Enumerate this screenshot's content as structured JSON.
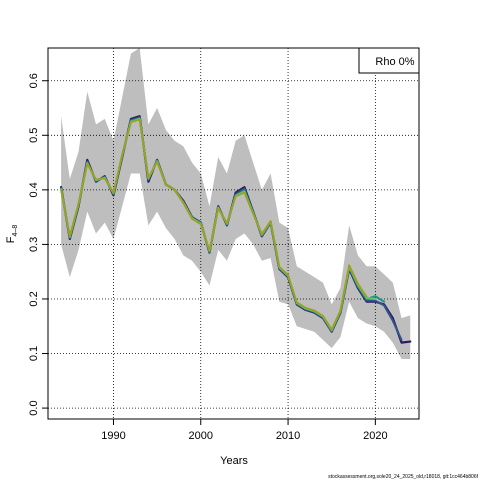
{
  "chart_data": {
    "type": "line",
    "xlabel": "Years",
    "ylabel_main": "F",
    "ylabel_sub": "4–8",
    "legend_label": "Rho 0%",
    "legend_position": "top-right",
    "footer": "stockassessment.org,sole20_24_2025_old,r18018, git:1cc464b806f",
    "xlim": [
      1982.5,
      2025
    ],
    "ylim": [
      -0.02,
      0.66
    ],
    "x_ticks": [
      1990,
      2000,
      2010,
      2020
    ],
    "y_ticks": [
      0.0,
      0.1,
      0.2,
      0.3,
      0.4,
      0.5,
      0.6
    ],
    "y_tick_labels": [
      "0.0",
      "0.1",
      "0.2",
      "0.3",
      "0.4",
      "0.5",
      "0.6"
    ],
    "grid": true,
    "grid_style": "dotted",
    "confidence_band": {
      "color": "#bebebe",
      "x": [
        1984,
        1985,
        1986,
        1987,
        1988,
        1989,
        1990,
        1991,
        1992,
        1993,
        1994,
        1995,
        1996,
        1997,
        1998,
        1999,
        2000,
        2001,
        2002,
        2003,
        2004,
        2005,
        2006,
        2007,
        2008,
        2009,
        2010,
        2011,
        2012,
        2013,
        2014,
        2015,
        2016,
        2017,
        2018,
        2019,
        2020,
        2021,
        2022,
        2023,
        2024
      ],
      "lower": [
        0.3,
        0.24,
        0.29,
        0.36,
        0.32,
        0.34,
        0.31,
        0.37,
        0.43,
        0.43,
        0.335,
        0.36,
        0.33,
        0.31,
        0.28,
        0.27,
        0.25,
        0.225,
        0.29,
        0.27,
        0.31,
        0.32,
        0.3,
        0.27,
        0.275,
        0.195,
        0.19,
        0.15,
        0.145,
        0.14,
        0.125,
        0.11,
        0.13,
        0.195,
        0.165,
        0.155,
        0.15,
        0.14,
        0.12,
        0.09,
        0.09
      ],
      "upper": [
        0.535,
        0.42,
        0.47,
        0.58,
        0.52,
        0.53,
        0.49,
        0.57,
        0.65,
        0.66,
        0.52,
        0.55,
        0.51,
        0.49,
        0.48,
        0.45,
        0.43,
        0.37,
        0.46,
        0.43,
        0.49,
        0.5,
        0.45,
        0.4,
        0.43,
        0.34,
        0.33,
        0.26,
        0.25,
        0.24,
        0.23,
        0.19,
        0.22,
        0.335,
        0.28,
        0.26,
        0.26,
        0.245,
        0.23,
        0.165,
        0.17
      ]
    },
    "series": [
      {
        "color": "#2a1a5e",
        "width": 2.2,
        "x": [
          1984,
          1985,
          1986,
          1987,
          1988,
          1989,
          1990,
          1991,
          1992,
          1993,
          1994,
          1995,
          1996,
          1997,
          1998,
          1999,
          2000,
          2001,
          2002,
          2003,
          2004,
          2005,
          2006,
          2007,
          2008,
          2009,
          2010,
          2011,
          2012,
          2013,
          2014,
          2015,
          2016,
          2017,
          2018,
          2019,
          2020,
          2021,
          2022,
          2023,
          2024
        ],
        "values": [
          0.405,
          0.31,
          0.37,
          0.455,
          0.415,
          0.425,
          0.39,
          0.46,
          0.53,
          0.535,
          0.415,
          0.455,
          0.41,
          0.4,
          0.38,
          0.35,
          0.34,
          0.285,
          0.37,
          0.335,
          0.395,
          0.405,
          0.36,
          0.315,
          0.34,
          0.255,
          0.24,
          0.19,
          0.18,
          0.175,
          0.165,
          0.14,
          0.175,
          0.255,
          0.22,
          0.195,
          0.195,
          0.19,
          0.165,
          0.12,
          0.122
        ]
      },
      {
        "color": "#33548a",
        "width": 2.0,
        "x": [
          1984,
          1985,
          1986,
          1987,
          1988,
          1989,
          1990,
          1991,
          1992,
          1993,
          1994,
          1995,
          1996,
          1997,
          1998,
          1999,
          2000,
          2001,
          2002,
          2003,
          2004,
          2005,
          2006,
          2007,
          2008,
          2009,
          2010,
          2011,
          2012,
          2013,
          2014,
          2015,
          2016,
          2017,
          2018,
          2019,
          2020,
          2021,
          2022,
          2023
        ],
        "values": [
          0.403,
          0.312,
          0.372,
          0.452,
          0.416,
          0.424,
          0.392,
          0.462,
          0.528,
          0.533,
          0.418,
          0.454,
          0.41,
          0.4,
          0.378,
          0.349,
          0.339,
          0.286,
          0.369,
          0.336,
          0.392,
          0.402,
          0.359,
          0.316,
          0.341,
          0.256,
          0.241,
          0.191,
          0.181,
          0.176,
          0.166,
          0.141,
          0.176,
          0.257,
          0.222,
          0.197,
          0.197,
          0.188,
          0.16,
          0.125
        ]
      },
      {
        "color": "#21918c",
        "width": 2.0,
        "x": [
          1984,
          1985,
          1986,
          1987,
          1988,
          1989,
          1990,
          1991,
          1992,
          1993,
          1994,
          1995,
          1996,
          1997,
          1998,
          1999,
          2000,
          2001,
          2002,
          2003,
          2004,
          2005,
          2006,
          2007,
          2008,
          2009,
          2010,
          2011,
          2012,
          2013,
          2014,
          2015,
          2016,
          2017,
          2018,
          2019,
          2020,
          2021
        ],
        "values": [
          0.402,
          0.313,
          0.373,
          0.45,
          0.417,
          0.423,
          0.393,
          0.463,
          0.526,
          0.531,
          0.42,
          0.453,
          0.41,
          0.4,
          0.377,
          0.349,
          0.339,
          0.287,
          0.368,
          0.337,
          0.39,
          0.399,
          0.358,
          0.317,
          0.341,
          0.257,
          0.242,
          0.192,
          0.182,
          0.177,
          0.167,
          0.142,
          0.177,
          0.258,
          0.224,
          0.2,
          0.205,
          0.195
        ]
      },
      {
        "color": "#5ec962",
        "width": 2.0,
        "x": [
          1984,
          1985,
          1986,
          1987,
          1988,
          1989,
          1990,
          1991,
          1992,
          1993,
          1994,
          1995,
          1996,
          1997,
          1998,
          1999,
          2000,
          2001,
          2002,
          2003,
          2004,
          2005,
          2006,
          2007,
          2008,
          2009,
          2010,
          2011,
          2012,
          2013,
          2014,
          2015,
          2016,
          2017,
          2018,
          2019,
          2020
        ],
        "values": [
          0.401,
          0.314,
          0.374,
          0.449,
          0.418,
          0.422,
          0.394,
          0.464,
          0.525,
          0.53,
          0.421,
          0.452,
          0.41,
          0.4,
          0.377,
          0.348,
          0.338,
          0.288,
          0.367,
          0.338,
          0.389,
          0.397,
          0.357,
          0.318,
          0.342,
          0.258,
          0.243,
          0.193,
          0.183,
          0.178,
          0.168,
          0.143,
          0.178,
          0.26,
          0.226,
          0.202,
          0.2
        ]
      },
      {
        "color": "#a0a020",
        "width": 1.8,
        "x": [
          1984,
          1985,
          1986,
          1987,
          1988,
          1989,
          1990,
          1991,
          1992,
          1993,
          1994,
          1995,
          1996,
          1997,
          1998,
          1999,
          2000,
          2001,
          2002,
          2003,
          2004,
          2005,
          2006,
          2007,
          2008,
          2009,
          2010,
          2011,
          2012,
          2013,
          2014,
          2015,
          2016,
          2017,
          2018,
          2019
        ],
        "values": [
          0.4,
          0.315,
          0.375,
          0.448,
          0.419,
          0.421,
          0.395,
          0.465,
          0.524,
          0.529,
          0.422,
          0.451,
          0.41,
          0.4,
          0.376,
          0.347,
          0.337,
          0.289,
          0.366,
          0.339,
          0.388,
          0.395,
          0.356,
          0.319,
          0.343,
          0.259,
          0.244,
          0.194,
          0.184,
          0.179,
          0.169,
          0.144,
          0.179,
          0.262,
          0.228,
          0.204
        ]
      }
    ]
  }
}
